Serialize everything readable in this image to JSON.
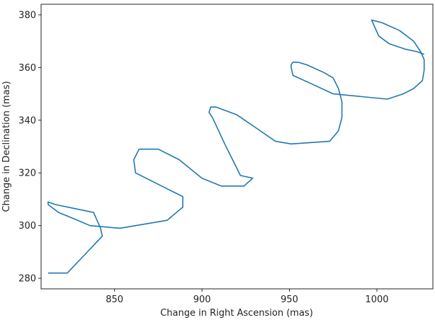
{
  "chart_data": {
    "type": "line",
    "title": "",
    "xlabel": "Change in Right Ascension (mas)",
    "ylabel": "Change in Declination (mas)",
    "xlim": [
      808,
      1032
    ],
    "ylim": [
      276,
      384
    ],
    "xticks": [
      850,
      900,
      950,
      1000
    ],
    "yticks": [
      280,
      300,
      320,
      340,
      360,
      380
    ],
    "grid": false,
    "legend": "none",
    "series": [
      {
        "color": "#1f77b4",
        "x": [
          812,
          823,
          843,
          842,
          838,
          816,
          812,
          812,
          818,
          829,
          836,
          853,
          880,
          889,
          889,
          877,
          862,
          861,
          864,
          868,
          875,
          887,
          900,
          911,
          924,
          929,
          922,
          913,
          906,
          904,
          905,
          908,
          912,
          920,
          931,
          942,
          951,
          973,
          978,
          980,
          980,
          978,
          975,
          970,
          960,
          955,
          952,
          951,
          951,
          952,
          962,
          975,
          1006,
          1015,
          1021,
          1026,
          1027,
          1027,
          1025,
          1021,
          1013,
          1003,
          997,
          997,
          999,
          1001,
          1007,
          1016,
          1023,
          1027
        ],
        "y": [
          282,
          282,
          296,
          299,
          305,
          308,
          309,
          308,
          305,
          302,
          300,
          299,
          302,
          307,
          311,
          315,
          320,
          325,
          329,
          329,
          329,
          325,
          318,
          315,
          315,
          318,
          319,
          331,
          341,
          343,
          345,
          345,
          344,
          342,
          337,
          332,
          331,
          332,
          336,
          341,
          347,
          352,
          356,
          358,
          361,
          362,
          362,
          361,
          360,
          357,
          354,
          350,
          348,
          350,
          352,
          355,
          359,
          363,
          366,
          370,
          374,
          377,
          378,
          378,
          375,
          372,
          369,
          367,
          366,
          365
        ]
      }
    ]
  }
}
